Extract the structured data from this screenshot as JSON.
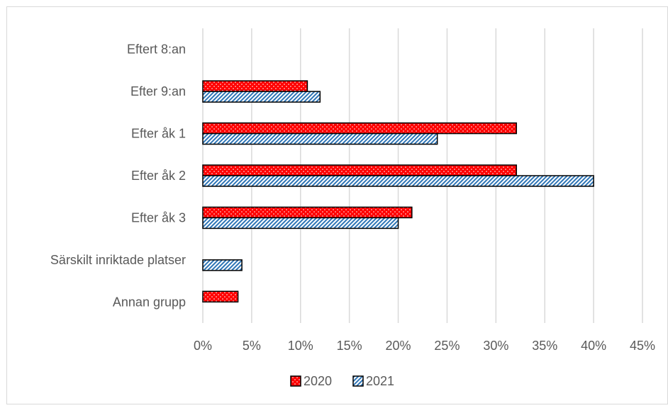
{
  "chart_data": {
    "type": "bar",
    "orientation": "horizontal",
    "categories": [
      "Eftert 8:an",
      "Efter 9:an",
      "Efter åk 1",
      "Efter åk 2",
      "Efter åk 3",
      "Särskilt inriktade platser",
      "Annan grupp"
    ],
    "series": [
      {
        "name": "2020",
        "color": "#ff0000",
        "pattern": "dots",
        "values": [
          0,
          10.7,
          32.1,
          32.1,
          21.4,
          0,
          3.6
        ]
      },
      {
        "name": "2021",
        "color": "#2e75b6",
        "pattern": "diagonal-stripes",
        "values": [
          0,
          12,
          24,
          40,
          20,
          4,
          0
        ]
      }
    ],
    "x_ticks": [
      "0%",
      "5%",
      "10%",
      "15%",
      "20%",
      "25%",
      "30%",
      "35%",
      "40%",
      "45%"
    ],
    "xlim": [
      0,
      45
    ],
    "unit": "%",
    "grid": true,
    "legend_position": "bottom"
  }
}
